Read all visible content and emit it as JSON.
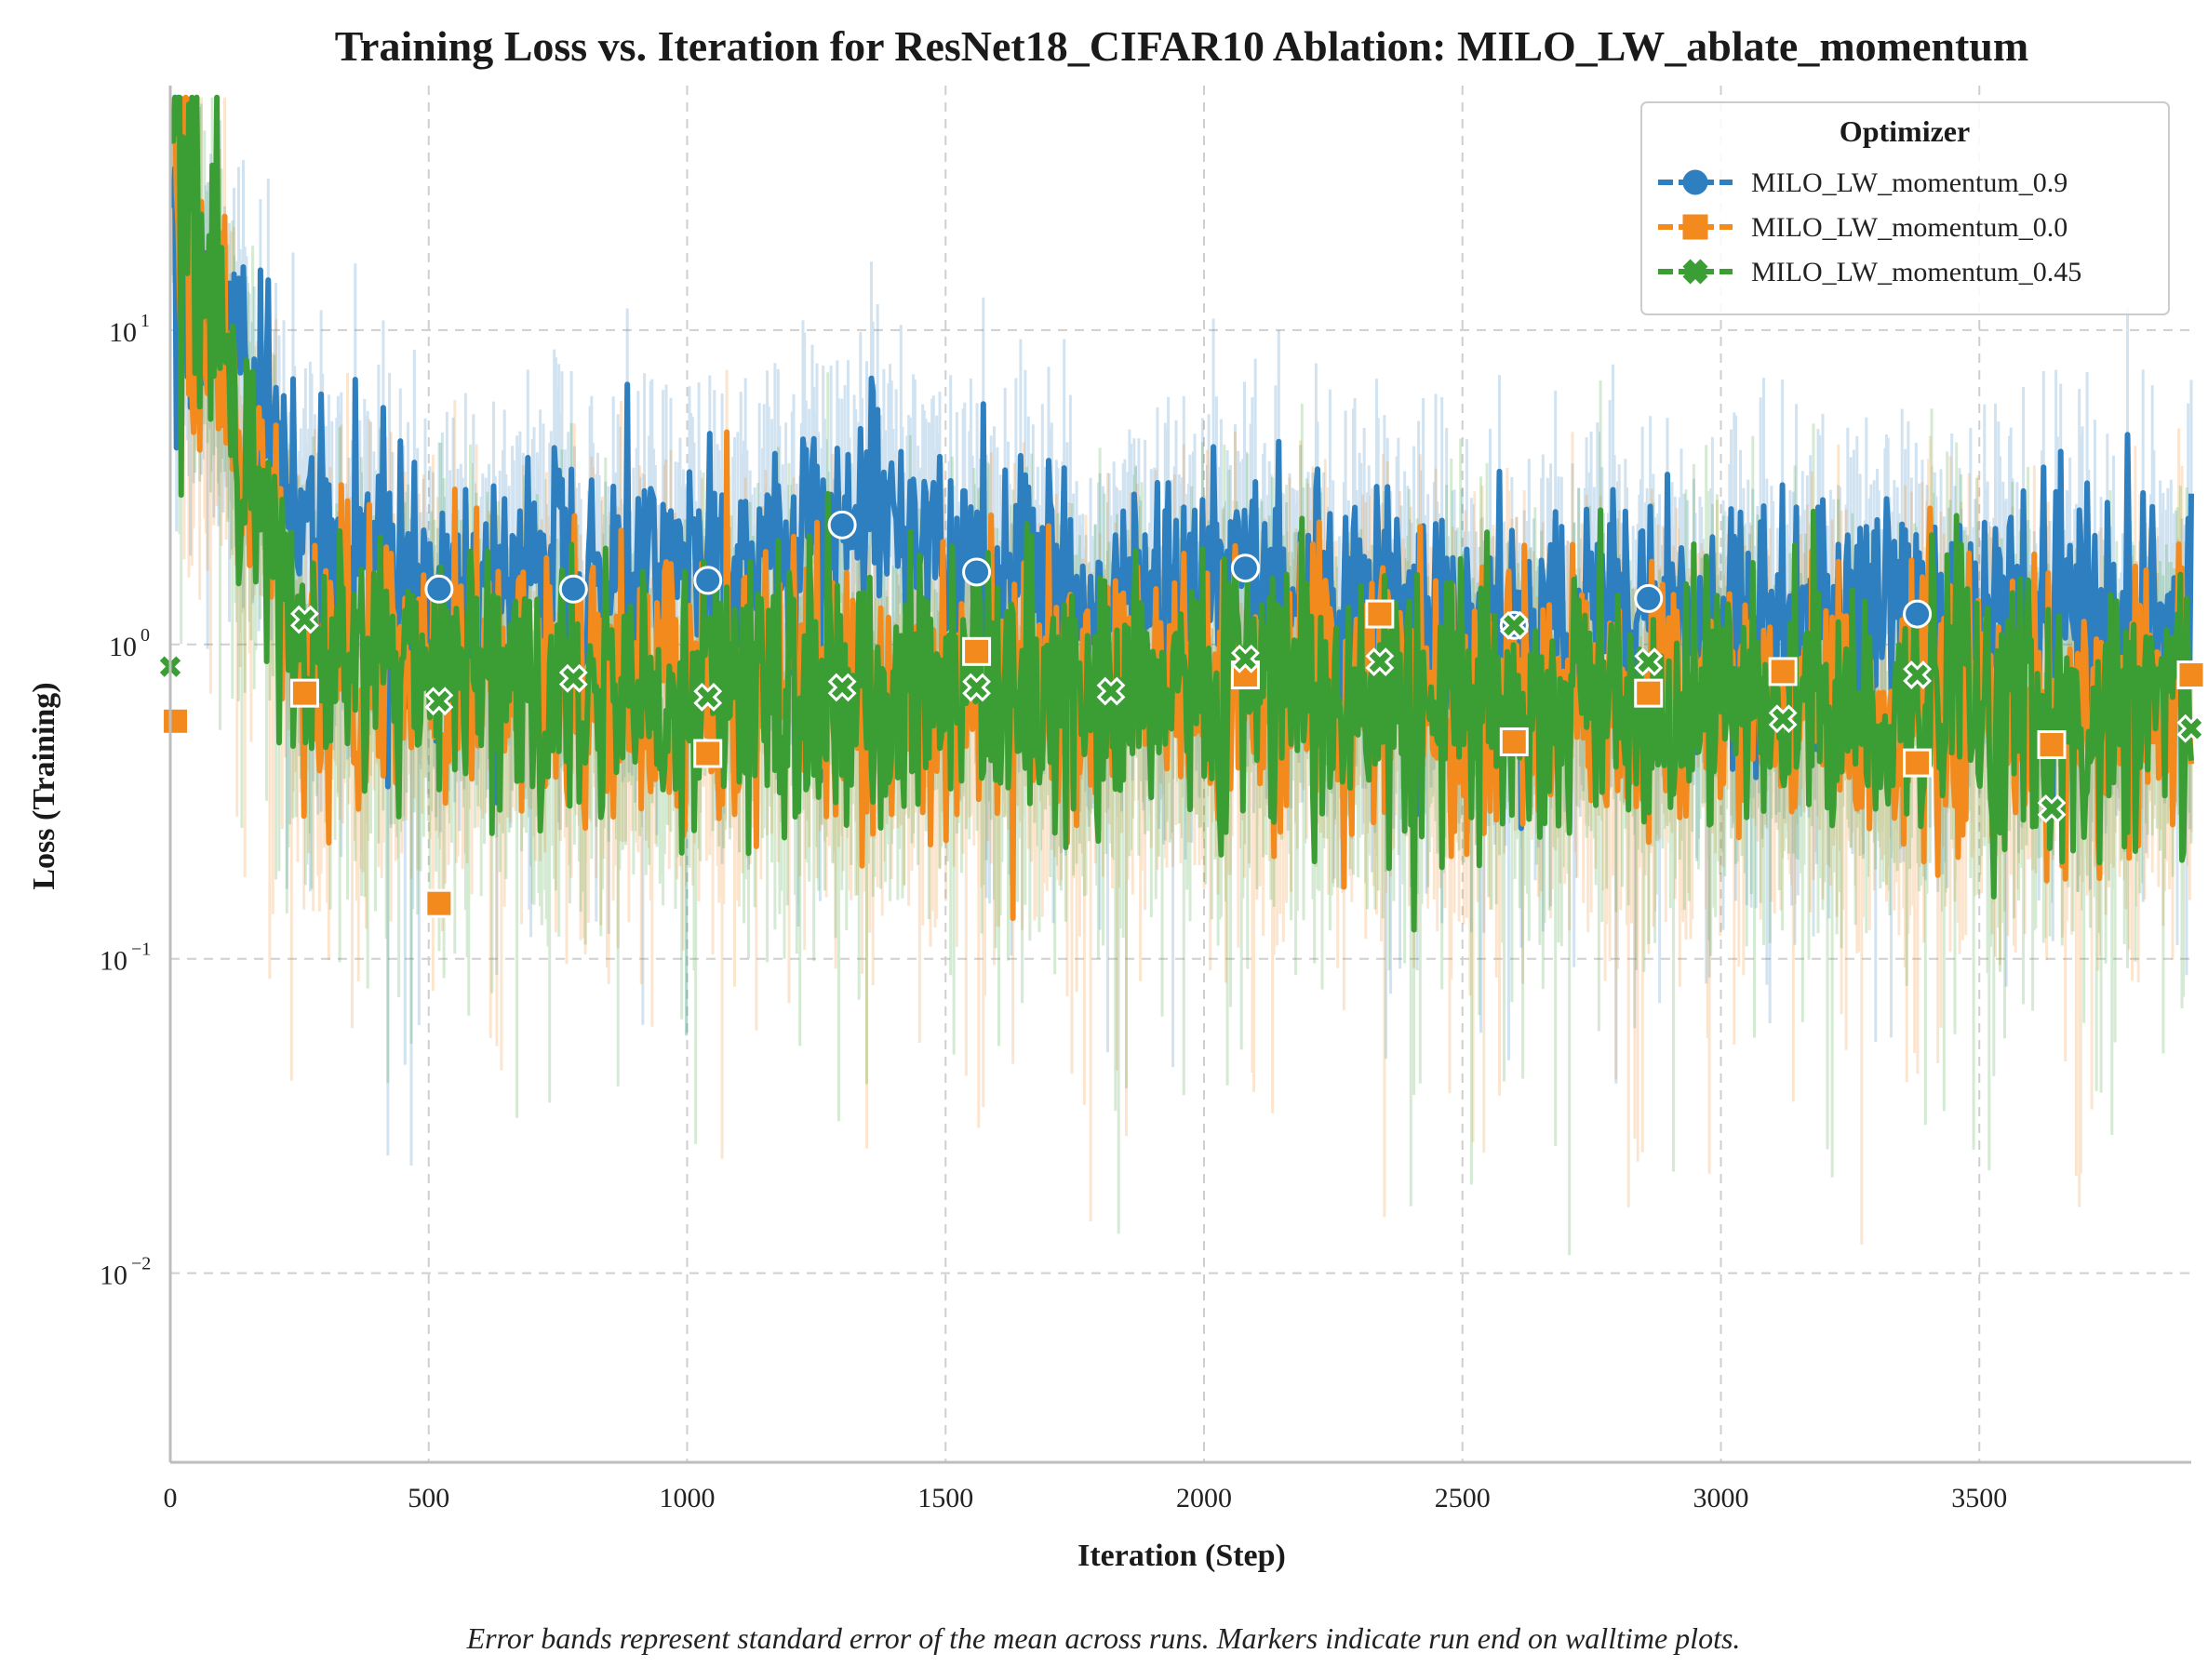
{
  "chart_data": {
    "type": "line",
    "title": "Training Loss vs. Iteration for ResNet18_CIFAR10 Ablation: MILO_LW_ablate_momentum",
    "xlabel": "Iteration (Step)",
    "ylabel": "Loss (Training)",
    "xlim": [
      0,
      3910
    ],
    "ylim": [
      0.0025,
      60
    ],
    "yscale": "log",
    "grid": true,
    "x_ticks": [
      0,
      500,
      1000,
      1500,
      2000,
      2500,
      3000,
      3500
    ],
    "x_tick_labels": [
      "0",
      "500",
      "1000",
      "1500",
      "2000",
      "2500",
      "3000",
      "3500"
    ],
    "y_ticks": [
      0.01,
      0.1,
      1,
      10
    ],
    "y_tick_labels": [
      {
        "base": "10",
        "exp": "−2"
      },
      {
        "base": "10",
        "exp": "−1"
      },
      {
        "base": "10",
        "exp": "0"
      },
      {
        "base": "10",
        "exp": "1"
      }
    ],
    "legend": {
      "title": "Optimizer",
      "placement": "top-right"
    },
    "series": [
      {
        "name": "MILO_LW_momentum_0.9",
        "color": "#2e7fbf",
        "marker": "circle",
        "points": [
          [
            0,
            25
          ],
          [
            260,
            2.3
          ],
          [
            520,
            1.4
          ],
          [
            780,
            1.5
          ],
          [
            1040,
            1.6
          ],
          [
            1300,
            2.4
          ],
          [
            1560,
            1.7
          ],
          [
            1820,
            1.3
          ],
          [
            2080,
            1.75
          ],
          [
            2340,
            1.2
          ],
          [
            2600,
            1.15
          ],
          [
            2860,
            1.4
          ],
          [
            3120,
            1.2
          ],
          [
            3380,
            1.25
          ],
          [
            3910,
            1.1
          ]
        ],
        "markers": [
          [
            520,
            1.5
          ],
          [
            780,
            1.5
          ],
          [
            1040,
            1.6
          ],
          [
            1300,
            2.4
          ],
          [
            1560,
            1.7
          ],
          [
            2080,
            1.75
          ],
          [
            2600,
            1.15
          ],
          [
            2860,
            1.4
          ],
          [
            3380,
            1.25
          ]
        ],
        "band_low": 0.45,
        "band_high": 2.1
      },
      {
        "name": "MILO_LW_momentum_0.0",
        "color": "#f28a1e",
        "marker": "square",
        "points": [
          [
            0,
            40
          ],
          [
            260,
            0.9
          ],
          [
            520,
            0.8
          ],
          [
            780,
            0.75
          ],
          [
            1040,
            0.7
          ],
          [
            1300,
            0.7
          ],
          [
            1560,
            0.75
          ],
          [
            1820,
            0.7
          ],
          [
            2080,
            0.7
          ],
          [
            2340,
            0.75
          ],
          [
            2600,
            0.65
          ],
          [
            2860,
            0.65
          ],
          [
            3120,
            0.65
          ],
          [
            3380,
            0.6
          ],
          [
            3910,
            0.6
          ]
        ],
        "markers": [
          [
            10,
            0.57
          ],
          [
            260,
            0.7
          ],
          [
            520,
            0.15
          ],
          [
            1040,
            0.45
          ],
          [
            1560,
            0.95
          ],
          [
            2080,
            0.8
          ],
          [
            2340,
            1.25
          ],
          [
            2600,
            0.49
          ],
          [
            2860,
            0.7
          ],
          [
            3120,
            0.82
          ],
          [
            3380,
            0.42
          ],
          [
            3640,
            0.48
          ],
          [
            3910,
            0.8
          ]
        ],
        "band_low": 0.35,
        "band_high": 1.6
      },
      {
        "name": "MILO_LW_momentum_0.45",
        "color": "#3a9e35",
        "marker": "x",
        "points": [
          [
            0,
            40
          ],
          [
            260,
            0.95
          ],
          [
            520,
            0.75
          ],
          [
            780,
            0.7
          ],
          [
            1040,
            0.7
          ],
          [
            1300,
            0.7
          ],
          [
            1560,
            0.7
          ],
          [
            1820,
            0.65
          ],
          [
            2080,
            0.7
          ],
          [
            2340,
            0.65
          ],
          [
            2600,
            0.65
          ],
          [
            2860,
            0.65
          ],
          [
            3120,
            0.6
          ],
          [
            3380,
            0.6
          ],
          [
            3910,
            0.6
          ]
        ],
        "markers": [
          [
            0,
            0.85
          ],
          [
            260,
            1.2
          ],
          [
            520,
            0.66
          ],
          [
            780,
            0.78
          ],
          [
            1040,
            0.68
          ],
          [
            1300,
            0.73
          ],
          [
            1560,
            0.73
          ],
          [
            1820,
            0.71
          ],
          [
            2080,
            0.9
          ],
          [
            2340,
            0.88
          ],
          [
            2600,
            1.15
          ],
          [
            2860,
            0.88
          ],
          [
            3120,
            0.58
          ],
          [
            3380,
            0.8
          ],
          [
            3640,
            0.3
          ],
          [
            3910,
            0.54
          ]
        ],
        "band_low": 0.3,
        "band_high": 1.5
      }
    ],
    "annotation": "Error bands represent standard error of the mean across runs. Markers indicate run end on walltime plots."
  }
}
